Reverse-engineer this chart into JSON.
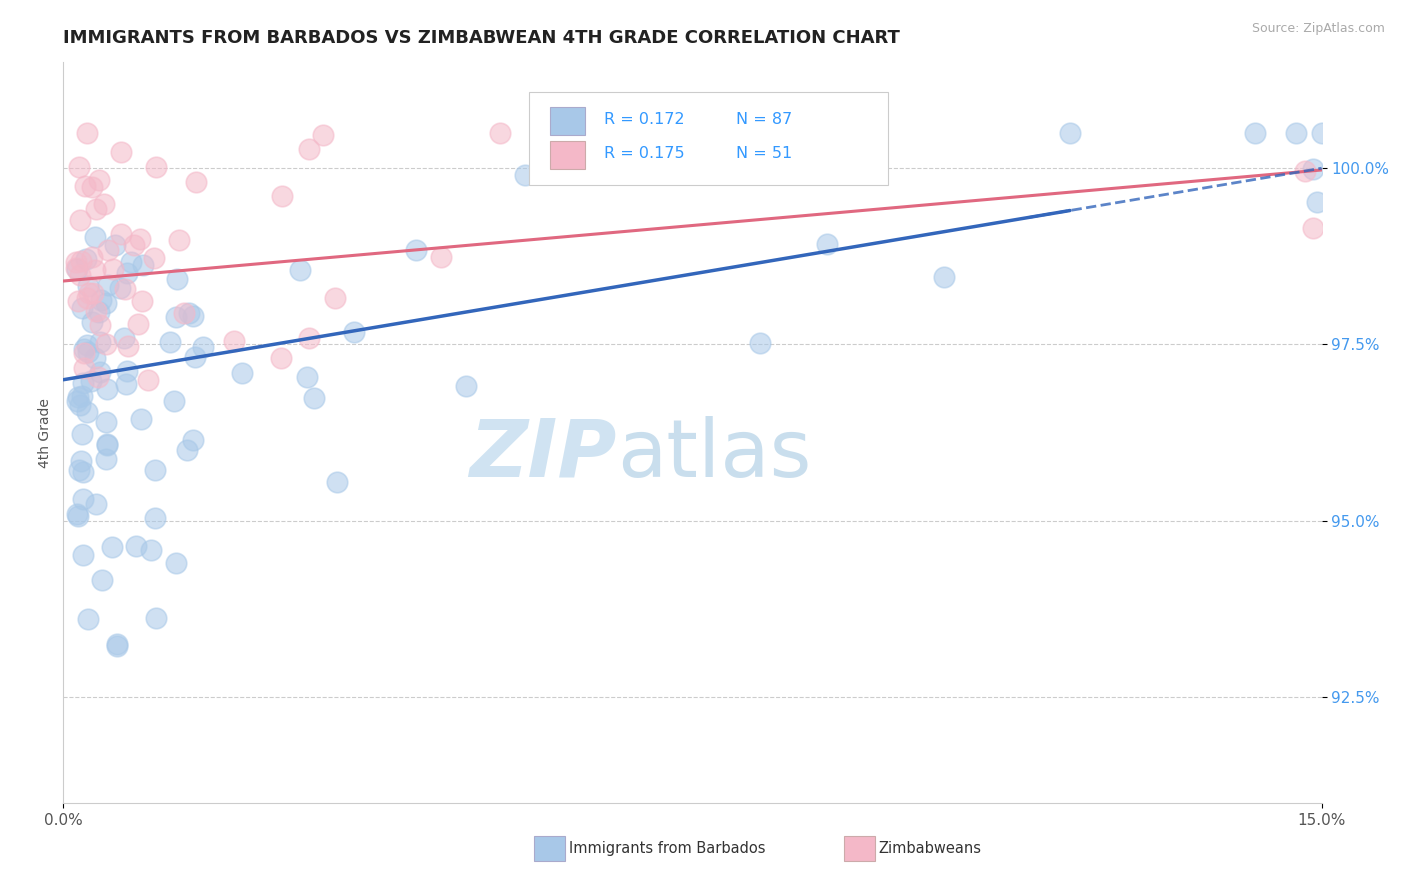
{
  "title": "IMMIGRANTS FROM BARBADOS VS ZIMBABWEAN 4TH GRADE CORRELATION CHART",
  "source": "Source: ZipAtlas.com",
  "ylabel": "4th Grade",
  "xlim": [
    0.0,
    15.0
  ],
  "ylim": [
    91.0,
    101.5
  ],
  "yticks": [
    92.5,
    95.0,
    97.5,
    100.0
  ],
  "ytick_labels": [
    "92.5%",
    "95.0%",
    "97.5%",
    "100.0%"
  ],
  "color_blue": "#a8c8e8",
  "color_pink": "#f4b8c8",
  "line_color_blue": "#3366bb",
  "line_color_pink": "#e06880",
  "background_color": "#ffffff",
  "legend_r1": "R = 0.172",
  "legend_n1": "N = 87",
  "legend_r2": "R = 0.175",
  "legend_n2": "N = 51",
  "legend_text_color": "#3399ff",
  "watermark_zip_color": "#c8dff0",
  "watermark_atlas_color": "#b8d4e8",
  "source_color": "#aaaaaa",
  "ylabel_color": "#555555",
  "ytick_color": "#4499ee",
  "xtick_color": "#555555"
}
